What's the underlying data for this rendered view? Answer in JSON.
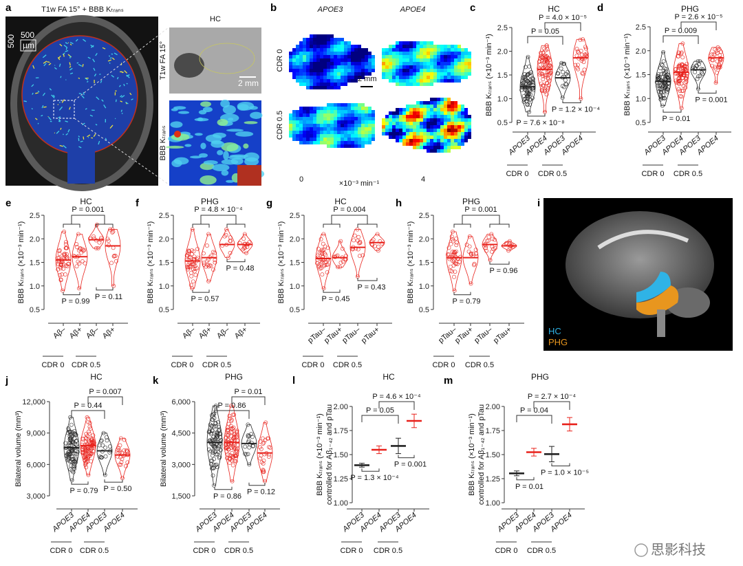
{
  "panel_letters": [
    "a",
    "b",
    "c",
    "d",
    "e",
    "f",
    "g",
    "h",
    "i",
    "j",
    "k",
    "l",
    "m"
  ],
  "panel_a": {
    "title": "T1w FA 15° + BBB Kₜᵣₐₙₛ",
    "scale_value": "500",
    "scale_unit": "µm",
    "inset_title": "HC",
    "inset_top_label": "T1w FA 15°",
    "inset_bottom_label": "BBB Kₜᵣₐₙₛ",
    "inset_scale": "2 mm"
  },
  "panel_b": {
    "col_labels": [
      "APOE3",
      "APOE4"
    ],
    "row_labels": [
      "CDR 0",
      "CDR 0.5"
    ],
    "scale": "2 mm",
    "colorbar_min": "0",
    "colorbar_max": "4",
    "colorbar_unit": "×10⁻³ min⁻¹",
    "colormap": "jet"
  },
  "panel_i": {
    "legend": [
      {
        "label": "HC",
        "color": "#2fb3e6"
      },
      {
        "label": "PHG",
        "color": "#e8961e"
      }
    ]
  },
  "watermark": "思影科技",
  "colors": {
    "cdr0_or_apoe3": "#222222",
    "apoe4_or_positive": "#e8201a"
  },
  "chart_data": [
    {
      "id": "c",
      "type": "violin-scatter",
      "title": "HC",
      "ylabel": "BBB Kₜᵣₐₙₛ (×10⁻³ min⁻¹)",
      "ylim": [
        0.5,
        2.5
      ],
      "yticks": [
        "0.5",
        "1.0",
        "1.5",
        "2.0",
        "2.5"
      ],
      "categories": [
        "APOE3",
        "APOE4",
        "APOE3",
        "APOE4"
      ],
      "italic": true,
      "groups": [
        "CDR 0",
        "CDR 0.5"
      ],
      "colors": [
        "black",
        "red",
        "black",
        "red"
      ],
      "medians": [
        1.25,
        1.62,
        1.44,
        1.86
      ],
      "ranges": [
        [
          0.72,
          1.88
        ],
        [
          0.72,
          2.12
        ],
        [
          1.02,
          1.75
        ],
        [
          1.0,
          2.25
        ]
      ],
      "pvalues": [
        {
          "text": "P = 4.0 × 10⁻⁵",
          "pair": [
            1,
            3
          ],
          "position": "top2"
        },
        {
          "text": "P = 0.05",
          "pair": [
            0,
            2
          ],
          "position": "top1"
        },
        {
          "text": "P = 1.2 × 10⁻⁴",
          "pair": [
            2,
            3
          ],
          "position": "bottom"
        },
        {
          "text": "P = 7.6 × 10⁻⁸",
          "pair": [
            0,
            1
          ],
          "position": "bottom"
        }
      ]
    },
    {
      "id": "d",
      "type": "violin-scatter",
      "title": "PHG",
      "ylabel": "BBB Kₜᵣₐₙₛ (×10⁻³ min⁻¹)",
      "ylim": [
        0.5,
        2.5
      ],
      "yticks": [
        "0.5",
        "1.0",
        "1.5",
        "2.0",
        "2.5"
      ],
      "categories": [
        "APOE3",
        "APOE4",
        "APOE3",
        "APOE4"
      ],
      "italic": true,
      "groups": [
        "CDR 0",
        "CDR 0.5"
      ],
      "colors": [
        "black",
        "red",
        "black",
        "red"
      ],
      "medians": [
        1.36,
        1.55,
        1.6,
        1.85
      ],
      "ranges": [
        [
          0.85,
          1.97
        ],
        [
          0.8,
          2.15
        ],
        [
          1.2,
          1.78
        ],
        [
          1.33,
          2.07
        ]
      ],
      "pvalues": [
        {
          "text": "P = 2.6 × 10⁻⁵",
          "pair": [
            1,
            3
          ],
          "position": "top2"
        },
        {
          "text": "P = 0.009",
          "pair": [
            0,
            2
          ],
          "position": "top1"
        },
        {
          "text": "P = 0.001",
          "pair": [
            2,
            3
          ],
          "position": "bottom"
        },
        {
          "text": "P = 0.01",
          "pair": [
            0,
            1
          ],
          "position": "bottom"
        }
      ]
    },
    {
      "id": "e",
      "type": "violin-scatter",
      "title": "HC",
      "ylabel": "BBB Kₜᵣₐₙₛ (×10⁻³ min⁻¹)",
      "ylim": [
        0.5,
        2.5
      ],
      "yticks": [
        "0.5",
        "1.0",
        "1.5",
        "2.0",
        "2.5"
      ],
      "categories": [
        "Aβ–",
        "Aβ+",
        "Aβ–",
        "Aβ+"
      ],
      "italic": false,
      "groups": [
        "CDR 0",
        "CDR 0.5"
      ],
      "colors": [
        "red",
        "red",
        "red",
        "red"
      ],
      "medians": [
        1.55,
        1.62,
        1.98,
        1.85
      ],
      "ranges": [
        [
          0.9,
          2.15
        ],
        [
          0.95,
          2.1
        ],
        [
          1.8,
          2.3
        ],
        [
          1.0,
          2.2
        ]
      ],
      "pvalues": [
        {
          "text": "P = 0.001",
          "pair": [
            0,
            3
          ],
          "position": "group"
        },
        {
          "text": "P = 0.99",
          "pair": [
            0,
            1
          ],
          "position": "bottom"
        },
        {
          "text": "P = 0.11",
          "pair": [
            2,
            3
          ],
          "position": "bottom"
        }
      ]
    },
    {
      "id": "f",
      "type": "violin-scatter",
      "title": "PHG",
      "ylabel": "BBB Kₜᵣₐₙₛ (×10⁻³ min⁻¹)",
      "ylim": [
        0.5,
        2.5
      ],
      "yticks": [
        "0.5",
        "1.0",
        "1.5",
        "2.0",
        "2.5"
      ],
      "categories": [
        "Aβ–",
        "Aβ+",
        "Aβ–",
        "Aβ+"
      ],
      "italic": false,
      "groups": [
        "CDR 0",
        "CDR 0.5"
      ],
      "colors": [
        "red",
        "red",
        "red",
        "red"
      ],
      "medians": [
        1.53,
        1.6,
        1.88,
        1.88
      ],
      "ranges": [
        [
          0.95,
          2.2
        ],
        [
          1.1,
          2.1
        ],
        [
          1.6,
          2.2
        ],
        [
          1.7,
          2.1
        ]
      ],
      "pvalues": [
        {
          "text": "P = 4.8 × 10⁻⁴",
          "pair": [
            0,
            3
          ],
          "position": "group"
        },
        {
          "text": "P = 0.57",
          "pair": [
            0,
            1
          ],
          "position": "bottom"
        },
        {
          "text": "P = 0.48",
          "pair": [
            2,
            3
          ],
          "position": "bottom"
        }
      ]
    },
    {
      "id": "g",
      "type": "violin-scatter",
      "title": "HC",
      "ylabel": "BBB Kₜᵣₐₙₛ (×10⁻³ min⁻¹)",
      "ylim": [
        0.5,
        2.5
      ],
      "yticks": [
        "0.5",
        "1.0",
        "1.5",
        "2.0",
        "2.5"
      ],
      "categories": [
        "pTau–",
        "pTau+",
        "pTau–",
        "pTau+"
      ],
      "italic": false,
      "groups": [
        "CDR 0",
        "CDR 0.5"
      ],
      "colors": [
        "red",
        "red",
        "red",
        "red"
      ],
      "medians": [
        1.58,
        1.6,
        1.82,
        1.92
      ],
      "ranges": [
        [
          0.95,
          2.1
        ],
        [
          1.4,
          1.95
        ],
        [
          1.2,
          2.2
        ],
        [
          1.75,
          2.1
        ]
      ],
      "pvalues": [
        {
          "text": "P = 0.004",
          "pair": [
            0,
            3
          ],
          "position": "group"
        },
        {
          "text": "P = 0.45",
          "pair": [
            0,
            1
          ],
          "position": "bottom"
        },
        {
          "text": "P = 0.43",
          "pair": [
            2,
            3
          ],
          "position": "bottom"
        }
      ]
    },
    {
      "id": "h",
      "type": "violin-scatter",
      "title": "PHG",
      "ylabel": "BBB Kₜᵣₐₙₛ (×10⁻³ min⁻¹)",
      "ylim": [
        0.5,
        2.5
      ],
      "yticks": [
        "0.5",
        "1.0",
        "1.5",
        "2.0",
        "2.5"
      ],
      "categories": [
        "pTau–",
        "pTau+",
        "pTau–",
        "pTau+"
      ],
      "italic": false,
      "groups": [
        "CDR 0",
        "CDR 0.5"
      ],
      "colors": [
        "red",
        "red",
        "red",
        "red"
      ],
      "medians": [
        1.6,
        1.6,
        1.88,
        1.85
      ],
      "ranges": [
        [
          0.9,
          2.15
        ],
        [
          1.05,
          2.05
        ],
        [
          1.55,
          2.1
        ],
        [
          1.75,
          1.95
        ]
      ],
      "pvalues": [
        {
          "text": "P = 0.001",
          "pair": [
            0,
            3
          ],
          "position": "group"
        },
        {
          "text": "P = 0.79",
          "pair": [
            0,
            1
          ],
          "position": "bottom"
        },
        {
          "text": "P = 0.96",
          "pair": [
            2,
            3
          ],
          "position": "bottom"
        }
      ]
    },
    {
      "id": "j",
      "type": "violin-scatter",
      "title": "HC",
      "ylabel": "Bilateral volume (mm³)",
      "ylim": [
        3000,
        12000
      ],
      "yticks": [
        "3,000",
        "6,000",
        "9,000",
        "12,000"
      ],
      "categories": [
        "APOE3",
        "APOE4",
        "APOE3",
        "APOE4"
      ],
      "italic": true,
      "groups": [
        "CDR 0",
        "CDR 0.5"
      ],
      "colors": [
        "black",
        "red",
        "black",
        "red"
      ],
      "medians": [
        7600,
        7800,
        7300,
        6900
      ],
      "ranges": [
        [
          4500,
          10500
        ],
        [
          5000,
          10500
        ],
        [
          5000,
          9000
        ],
        [
          4700,
          8500
        ]
      ],
      "pvalues": [
        {
          "text": "P = 0.007",
          "pair": [
            1,
            3
          ],
          "position": "top2"
        },
        {
          "text": "P = 0.44",
          "pair": [
            0,
            2
          ],
          "position": "top1"
        },
        {
          "text": "P = 0.79",
          "pair": [
            0,
            1
          ],
          "position": "bottom"
        },
        {
          "text": "P = 0.50",
          "pair": [
            2,
            3
          ],
          "position": "bottom"
        }
      ]
    },
    {
      "id": "k",
      "type": "violin-scatter",
      "title": "PHG",
      "ylabel": "Bilateral volume (mm³)",
      "ylim": [
        1500,
        6000
      ],
      "yticks": [
        "1,500",
        "3,000",
        "4,500",
        "6,000"
      ],
      "categories": [
        "APOE3",
        "APOE4",
        "APOE3",
        "APOE4"
      ],
      "italic": true,
      "groups": [
        "CDR 0",
        "CDR 0.5"
      ],
      "colors": [
        "black",
        "red",
        "black",
        "red"
      ],
      "medians": [
        4050,
        4050,
        4000,
        3550
      ],
      "ranges": [
        [
          2000,
          5800
        ],
        [
          2200,
          5800
        ],
        [
          3000,
          4900
        ],
        [
          2200,
          5000
        ]
      ],
      "pvalues": [
        {
          "text": "P = 0.01",
          "pair": [
            1,
            3
          ],
          "position": "top2"
        },
        {
          "text": "P = 0.86",
          "pair": [
            0,
            2
          ],
          "position": "top1"
        },
        {
          "text": "P = 0.86",
          "pair": [
            0,
            1
          ],
          "position": "bottom"
        },
        {
          "text": "P = 0.12",
          "pair": [
            2,
            3
          ],
          "position": "bottom"
        }
      ]
    },
    {
      "id": "l",
      "type": "mean-error",
      "title": "HC",
      "ylabel": "BBB Kₜᵣₐₙₛ (×10⁻³ min⁻¹)",
      "ylabel2": "controlled for Aβ₁₋₄₂ and pTau",
      "ylim": [
        1.0,
        2.0
      ],
      "yticks": [
        "1.00",
        "1.25",
        "1.50",
        "1.75",
        "2.00"
      ],
      "categories": [
        "APOE3",
        "APOE4",
        "APOE3",
        "APOE4"
      ],
      "italic": true,
      "groups": [
        "CDR 0",
        "CDR 0.5"
      ],
      "colors": [
        "black",
        "red",
        "black",
        "red"
      ],
      "means": [
        1.39,
        1.55,
        1.59,
        1.85
      ],
      "errors": [
        0.02,
        0.04,
        0.08,
        0.07
      ],
      "pvalues": [
        {
          "text": "P = 4.6 × 10⁻⁴",
          "pair": [
            1,
            3
          ],
          "position": "top2"
        },
        {
          "text": "P = 0.05",
          "pair": [
            0,
            2
          ],
          "position": "top1"
        },
        {
          "text": "P = 1.3 × 10⁻⁴",
          "pair": [
            0,
            1
          ],
          "position": "bottom"
        },
        {
          "text": "P = 0.001",
          "pair": [
            2,
            3
          ],
          "position": "bottom"
        }
      ]
    },
    {
      "id": "m",
      "type": "mean-error",
      "title": "PHG",
      "ylabel": "BBB Kₜᵣₐₙₛ (×10⁻³ min⁻¹)",
      "ylabel2": "controlled for Aβ₁₋₄₂ and pTau",
      "ylim": [
        1.0,
        2.0
      ],
      "yticks": [
        "1.00",
        "1.25",
        "1.50",
        "1.75",
        "2.00"
      ],
      "categories": [
        "APOE3",
        "APOE4",
        "APOE3",
        "APOE4"
      ],
      "italic": true,
      "groups": [
        "CDR 0",
        "CDR 0.5"
      ],
      "colors": [
        "black",
        "red",
        "black",
        "red"
      ],
      "means": [
        1.305,
        1.525,
        1.505,
        1.815
      ],
      "errors": [
        0.025,
        0.04,
        0.08,
        0.07
      ],
      "pvalues": [
        {
          "text": "P = 2.7 × 10⁻⁴",
          "pair": [
            1,
            3
          ],
          "position": "top2"
        },
        {
          "text": "P = 0.04",
          "pair": [
            0,
            2
          ],
          "position": "top1"
        },
        {
          "text": "P = 0.01",
          "pair": [
            0,
            1
          ],
          "position": "bottom"
        },
        {
          "text": "P = 1.0 × 10⁻⁵",
          "pair": [
            2,
            3
          ],
          "position": "bottom"
        }
      ]
    }
  ]
}
